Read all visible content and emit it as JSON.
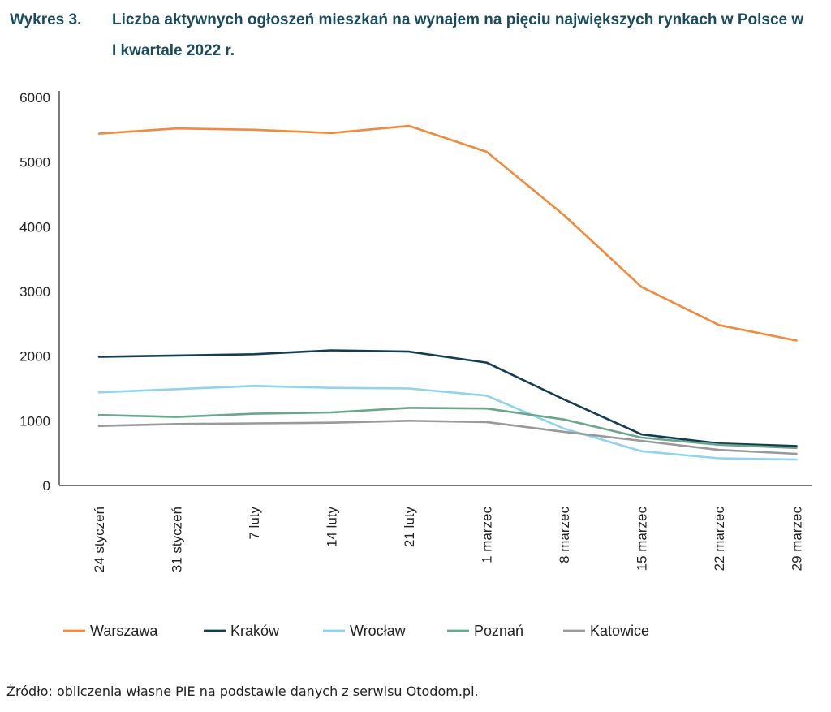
{
  "header": {
    "label": "Wykres 3.",
    "title": "Liczba aktywnych ogłoszeń mieszkań na wynajem na pięciu największych rynkach w Polsce w I kwartale 2022 r."
  },
  "source": "Źródło: obliczenia własne PIE na podstawie danych z serwisu Otodom.pl.",
  "chart_data": {
    "type": "line",
    "title": "Liczba aktywnych ogłoszeń mieszkań na wynajem na pięciu największych rynkach w Polsce w I kwartale 2022 r.",
    "xlabel": "",
    "ylabel": "",
    "ylim": [
      0,
      6000
    ],
    "yticks": [
      0,
      1000,
      2000,
      3000,
      4000,
      5000,
      6000
    ],
    "grid": false,
    "legend_position": "bottom",
    "categories": [
      "24 styczeń",
      "31 styczeń",
      "7 luty",
      "14 luty",
      "21 luty",
      "1 marzec",
      "8 marzec",
      "15 marzec",
      "22 marzec",
      "29 marzec"
    ],
    "series": [
      {
        "name": "Warszawa",
        "color": "#f08a3c",
        "values": [
          5440,
          5520,
          5500,
          5450,
          5560,
          5160,
          4180,
          3070,
          2480,
          2240
        ]
      },
      {
        "name": "Kraków",
        "color": "#143d52",
        "values": [
          1990,
          2010,
          2030,
          2090,
          2070,
          1900,
          1330,
          790,
          650,
          610
        ]
      },
      {
        "name": "Wrocław",
        "color": "#8fd3ee",
        "values": [
          1440,
          1490,
          1540,
          1510,
          1500,
          1390,
          880,
          530,
          420,
          400
        ]
      },
      {
        "name": "Poznań",
        "color": "#6aa68b",
        "values": [
          1090,
          1060,
          1110,
          1130,
          1200,
          1190,
          1020,
          740,
          630,
          580
        ]
      },
      {
        "name": "Katowice",
        "color": "#999999",
        "values": [
          920,
          950,
          960,
          970,
          1000,
          980,
          830,
          690,
          550,
          490
        ]
      }
    ]
  }
}
